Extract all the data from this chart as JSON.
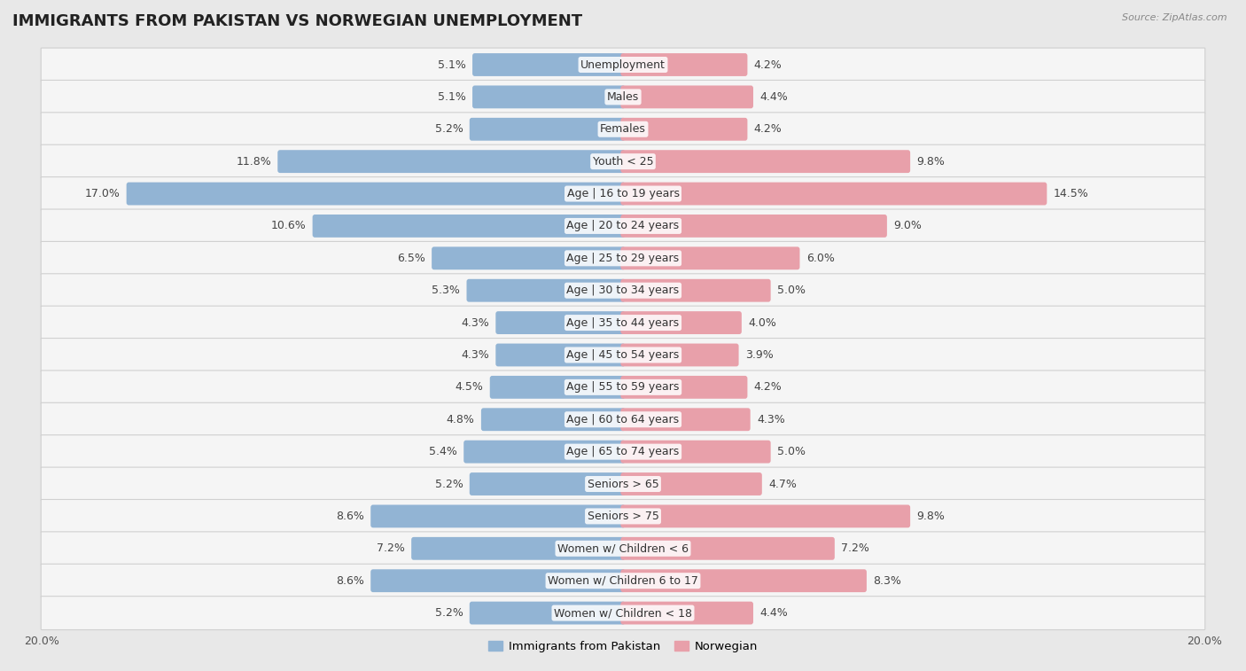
{
  "title": "IMMIGRANTS FROM PAKISTAN VS NORWEGIAN UNEMPLOYMENT",
  "source": "Source: ZipAtlas.com",
  "categories": [
    "Unemployment",
    "Males",
    "Females",
    "Youth < 25",
    "Age | 16 to 19 years",
    "Age | 20 to 24 years",
    "Age | 25 to 29 years",
    "Age | 30 to 34 years",
    "Age | 35 to 44 years",
    "Age | 45 to 54 years",
    "Age | 55 to 59 years",
    "Age | 60 to 64 years",
    "Age | 65 to 74 years",
    "Seniors > 65",
    "Seniors > 75",
    "Women w/ Children < 6",
    "Women w/ Children 6 to 17",
    "Women w/ Children < 18"
  ],
  "pakistan_values": [
    5.1,
    5.1,
    5.2,
    11.8,
    17.0,
    10.6,
    6.5,
    5.3,
    4.3,
    4.3,
    4.5,
    4.8,
    5.4,
    5.2,
    8.6,
    7.2,
    8.6,
    5.2
  ],
  "norwegian_values": [
    4.2,
    4.4,
    4.2,
    9.8,
    14.5,
    9.0,
    6.0,
    5.0,
    4.0,
    3.9,
    4.2,
    4.3,
    5.0,
    4.7,
    9.8,
    7.2,
    8.3,
    4.4
  ],
  "pakistan_color": "#92b4d4",
  "norwegian_color": "#e8a0aa",
  "pakistan_label": "Immigrants from Pakistan",
  "norwegian_label": "Norwegian",
  "xlim": 20.0,
  "background_color": "#e8e8e8",
  "row_bg_color": "#f5f5f5",
  "row_border_color": "#d0d0d0",
  "title_fontsize": 13,
  "label_fontsize": 9,
  "value_fontsize": 9
}
